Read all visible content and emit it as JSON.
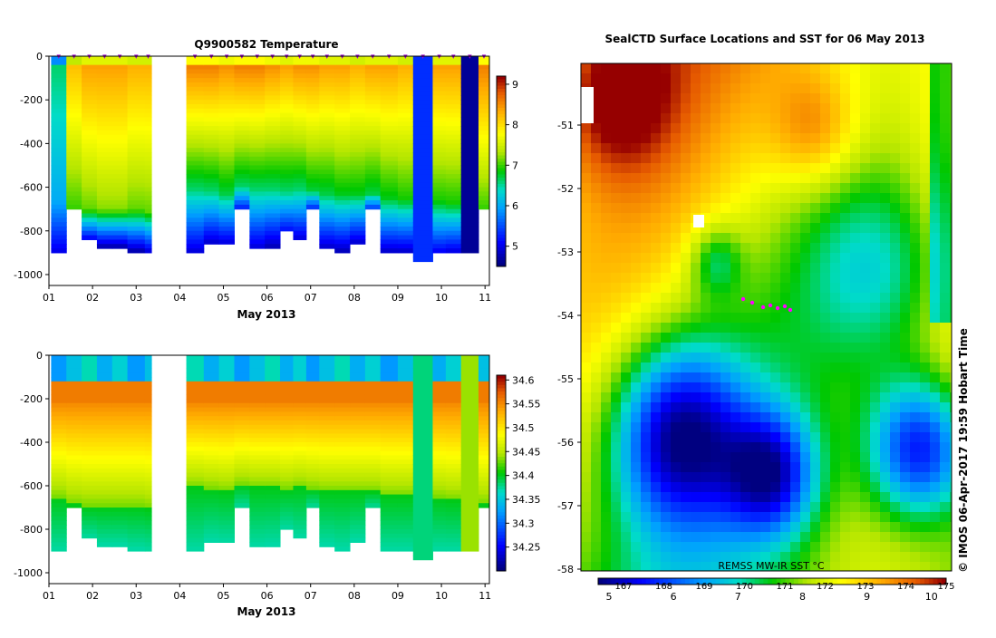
{
  "chart_data": [
    {
      "type": "heatmap",
      "title": "Q9900582  Temperature",
      "xlabel": "May 2013",
      "x_ticks": [
        "01",
        "02",
        "03",
        "04",
        "05",
        "06",
        "07",
        "08",
        "09",
        "10",
        "11"
      ],
      "y_ticks": [
        "0",
        "-200",
        "-400",
        "-600",
        "-800",
        "-1000"
      ],
      "ylim": [
        -1050,
        0
      ],
      "colorbar": {
        "ticks": [
          "5",
          "6",
          "7",
          "8",
          "9"
        ],
        "range": [
          4.5,
          9.2
        ]
      },
      "profiles": [
        {
          "day": 1.05,
          "top": 6.6,
          "bottom": 6.0,
          "thermo": 650,
          "deep": 4.9,
          "depth": 900
        },
        {
          "day": 1.4,
          "top": 8.2,
          "bottom": 7.0,
          "thermo": 680,
          "deep": 5.4,
          "depth": 700
        },
        {
          "day": 1.75,
          "top": 8.4,
          "bottom": 7.1,
          "thermo": 690,
          "deep": 4.8,
          "depth": 840
        },
        {
          "day": 2.1,
          "top": 8.4,
          "bottom": 7.2,
          "thermo": 690,
          "deep": 4.6,
          "depth": 870
        },
        {
          "day": 2.45,
          "top": 8.4,
          "bottom": 7.2,
          "thermo": 690,
          "deep": 4.6,
          "depth": 870
        },
        {
          "day": 2.8,
          "top": 8.3,
          "bottom": 7.1,
          "thermo": 690,
          "deep": 4.6,
          "depth": 890
        },
        {
          "day": 3.2,
          "top": 8.3,
          "bottom": 7.1,
          "thermo": 700,
          "deep": 4.7,
          "depth": 900
        },
        {
          "day": 4.15,
          "top": 8.6,
          "bottom": 6.6,
          "thermo": 600,
          "deep": 4.8,
          "depth": 900
        },
        {
          "day": 4.55,
          "top": 8.6,
          "bottom": 6.6,
          "thermo": 610,
          "deep": 4.8,
          "depth": 850
        },
        {
          "day": 4.9,
          "top": 8.5,
          "bottom": 6.7,
          "thermo": 620,
          "deep": 4.8,
          "depth": 860
        },
        {
          "day": 5.25,
          "top": 8.6,
          "bottom": 6.6,
          "thermo": 590,
          "deep": 5.0,
          "depth": 700
        },
        {
          "day": 5.6,
          "top": 8.6,
          "bottom": 6.6,
          "thermo": 600,
          "deep": 4.8,
          "depth": 880
        },
        {
          "day": 5.95,
          "top": 8.5,
          "bottom": 6.6,
          "thermo": 600,
          "deep": 4.7,
          "depth": 870
        },
        {
          "day": 6.3,
          "top": 8.4,
          "bottom": 6.6,
          "thermo": 610,
          "deep": 5.0,
          "depth": 800
        },
        {
          "day": 6.6,
          "top": 8.5,
          "bottom": 6.6,
          "thermo": 600,
          "deep": 4.8,
          "depth": 840
        },
        {
          "day": 6.9,
          "top": 8.5,
          "bottom": 6.7,
          "thermo": 610,
          "deep": 5.0,
          "depth": 700
        },
        {
          "day": 7.2,
          "top": 8.4,
          "bottom": 6.7,
          "thermo": 620,
          "deep": 4.8,
          "depth": 870
        },
        {
          "day": 7.55,
          "top": 8.4,
          "bottom": 6.8,
          "thermo": 620,
          "deep": 4.7,
          "depth": 890
        },
        {
          "day": 7.9,
          "top": 8.3,
          "bottom": 6.8,
          "thermo": 620,
          "deep": 4.8,
          "depth": 850
        },
        {
          "day": 8.25,
          "top": 8.4,
          "bottom": 6.7,
          "thermo": 620,
          "deep": 5.1,
          "depth": 700
        },
        {
          "day": 8.6,
          "top": 8.4,
          "bottom": 6.8,
          "thermo": 640,
          "deep": 4.7,
          "depth": 900
        },
        {
          "day": 9.0,
          "top": 8.3,
          "bottom": 6.9,
          "thermo": 640,
          "deep": 4.7,
          "depth": 900
        },
        {
          "day": 9.35,
          "top": 5.3,
          "bottom": 5.3,
          "thermo": 0,
          "deep": 4.7,
          "depth": 930,
          "uniform": true
        },
        {
          "day": 9.8,
          "top": 8.4,
          "bottom": 6.9,
          "thermo": 650,
          "deep": 4.9,
          "depth": 900
        },
        {
          "day": 10.1,
          "top": 8.4,
          "bottom": 6.9,
          "thermo": 660,
          "deep": 4.8,
          "depth": 900
        },
        {
          "day": 10.45,
          "top": 4.6,
          "bottom": 4.6,
          "thermo": 0,
          "deep": 4.6,
          "depth": 890,
          "uniform": true
        },
        {
          "day": 10.85,
          "top": 8.6,
          "bottom": 7.0,
          "thermo": 680,
          "deep": 6.5,
          "depth": 700
        }
      ],
      "gap_days": [
        3.35,
        4.0
      ]
    },
    {
      "type": "heatmap",
      "title": "",
      "xlabel": "May 2013",
      "x_ticks": [
        "01",
        "02",
        "03",
        "04",
        "05",
        "06",
        "07",
        "08",
        "09",
        "10",
        "11"
      ],
      "y_ticks": [
        "0",
        "-200",
        "-400",
        "-600",
        "-800",
        "-1000"
      ],
      "ylim": [
        -1050,
        0
      ],
      "colorbar": {
        "ticks": [
          "34.6",
          "34.55",
          "34.5",
          "34.45",
          "34.4",
          "34.35",
          "34.3",
          "34.25"
        ],
        "range": [
          34.2,
          34.61
        ]
      }
    },
    {
      "type": "heatmap",
      "title": "SealCTD Surface Locations and SST for 06 May 2013",
      "y_ticks": [
        "-51",
        "-52",
        "-53",
        "-54",
        "-55",
        "-56",
        "-57",
        "-58"
      ],
      "colorbar_label": "REMSS MW-IR SST °C",
      "colorbar_ticks_c": [
        "5",
        "6",
        "7",
        "8",
        "9",
        "10"
      ],
      "colorbar_ticks_secondary": [
        "167",
        "168",
        "169",
        "170",
        "171",
        "172",
        "173",
        "174",
        "175"
      ],
      "credit": "© IMOS 06-Apr-2017 19:59 Hobart Time"
    }
  ]
}
